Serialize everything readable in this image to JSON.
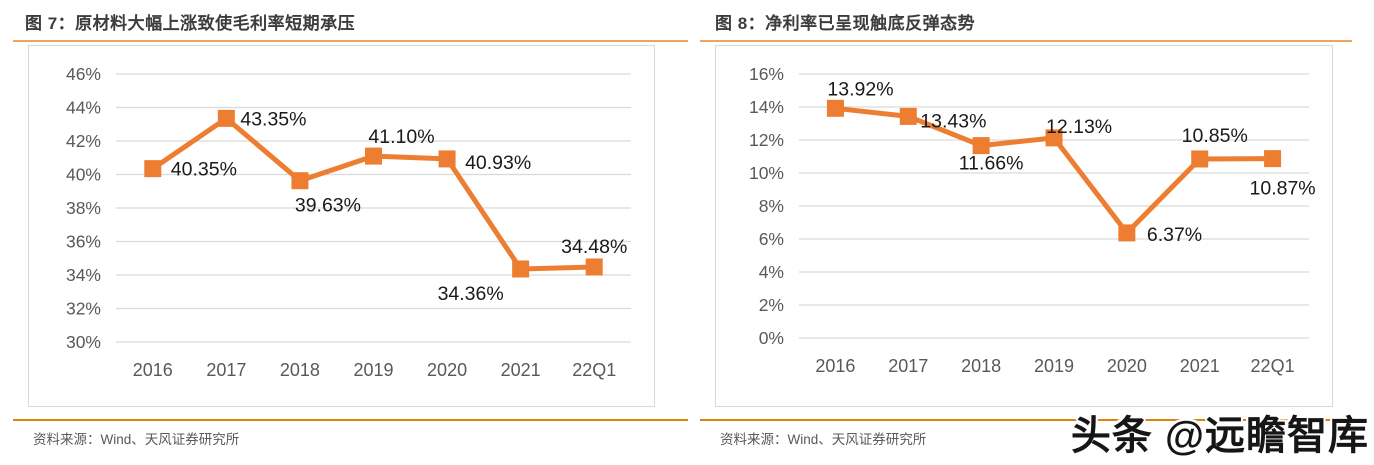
{
  "colors": {
    "accent_orange": "#ED7D31",
    "grid": "#D9D9D9",
    "axis_text": "#595959",
    "data_label": "#1A1A1A",
    "title_rule": "#F0A35C",
    "source_rule": "#E0800F"
  },
  "watermark": {
    "text": "头条 @远瞻智库"
  },
  "panels": [
    {
      "title": "图 7：原材料大幅上涨致使毛利率短期承压",
      "source": "资料来源：Wind、天风证券研究所",
      "chart_data": {
        "type": "line",
        "title": "原材料大幅上涨致使毛利率短期承压",
        "categories": [
          "2016",
          "2017",
          "2018",
          "2019",
          "2020",
          "2021",
          "22Q1"
        ],
        "values": [
          40.35,
          43.35,
          39.63,
          41.1,
          40.93,
          34.36,
          34.48
        ],
        "labels": [
          "40.35%",
          "43.35%",
          "39.63%",
          "41.10%",
          "40.93%",
          "34.36%",
          "34.48%"
        ],
        "xlabel": "",
        "ylabel": "",
        "ylim": [
          30,
          46
        ],
        "ytick_step": 2,
        "ytick_suffix": "%",
        "grid": "horizontal",
        "legend": "none",
        "marker": "square",
        "label_offsets": [
          [
            18,
            7,
            "start"
          ],
          [
            14,
            7,
            "start"
          ],
          [
            28,
            31,
            "middle"
          ],
          [
            28,
            -13,
            "middle"
          ],
          [
            18,
            10,
            "start"
          ],
          [
            -50,
            31,
            "middle"
          ],
          [
            0,
            -14,
            "middle"
          ]
        ]
      }
    },
    {
      "title": "图 8：净利率已呈现触底反弹态势",
      "source": "资料来源：Wind、天风证券研究所",
      "chart_data": {
        "type": "line",
        "title": "净利率已呈现触底反弹态势",
        "categories": [
          "2016",
          "2017",
          "2018",
          "2019",
          "2020",
          "2021",
          "22Q1"
        ],
        "values": [
          13.92,
          13.43,
          11.66,
          12.13,
          6.37,
          10.85,
          10.87
        ],
        "labels": [
          "13.92%",
          "13.43%",
          "11.66%",
          "12.13%",
          "6.37%",
          "10.85%",
          "10.87%"
        ],
        "xlabel": "",
        "ylabel": "",
        "ylim": [
          0,
          16
        ],
        "ytick_step": 2,
        "ytick_suffix": "%",
        "grid": "horizontal",
        "legend": "none",
        "marker": "square",
        "label_offsets": [
          [
            -8,
            -13,
            "start"
          ],
          [
            12,
            11,
            "start"
          ],
          [
            10,
            24,
            "middle"
          ],
          [
            -8,
            -5,
            "start"
          ],
          [
            20,
            8,
            "start"
          ],
          [
            15,
            -17,
            "middle"
          ],
          [
            10,
            36,
            "middle"
          ]
        ]
      }
    }
  ]
}
